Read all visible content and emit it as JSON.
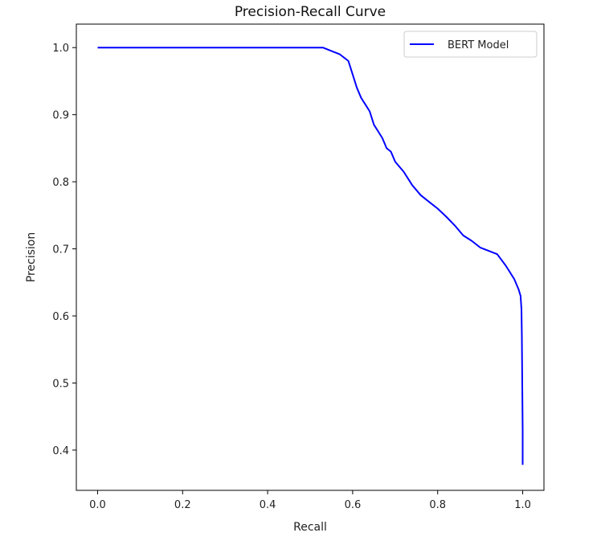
{
  "chart_data": {
    "type": "line",
    "title": "Precision-Recall Curve",
    "xlabel": "Recall",
    "ylabel": "Precision",
    "xlim": [
      -0.05,
      1.05
    ],
    "ylim": [
      0.34,
      1.035
    ],
    "xticks": [
      "0.0",
      "0.2",
      "0.4",
      "0.6",
      "0.8",
      "1.0"
    ],
    "yticks": [
      "0.4",
      "0.5",
      "0.6",
      "0.7",
      "0.8",
      "0.9",
      "1.0"
    ],
    "grid": false,
    "legend": "top-right",
    "series": [
      {
        "name": "BERT Model",
        "color": "#0000ff",
        "x": [
          0.0,
          0.1,
          0.2,
          0.3,
          0.4,
          0.5,
          0.53,
          0.55,
          0.57,
          0.59,
          0.6,
          0.61,
          0.62,
          0.63,
          0.64,
          0.65,
          0.66,
          0.67,
          0.68,
          0.69,
          0.7,
          0.72,
          0.74,
          0.76,
          0.78,
          0.8,
          0.82,
          0.84,
          0.86,
          0.88,
          0.9,
          0.92,
          0.94,
          0.96,
          0.98,
          0.99,
          0.995,
          0.997,
          0.998,
          0.999,
          1.0,
          1.0
        ],
        "y": [
          1.0,
          1.0,
          1.0,
          1.0,
          1.0,
          1.0,
          1.0,
          0.995,
          0.99,
          0.98,
          0.96,
          0.94,
          0.925,
          0.915,
          0.905,
          0.885,
          0.875,
          0.865,
          0.85,
          0.845,
          0.83,
          0.815,
          0.795,
          0.78,
          0.77,
          0.76,
          0.748,
          0.735,
          0.72,
          0.712,
          0.702,
          0.697,
          0.692,
          0.675,
          0.655,
          0.64,
          0.63,
          0.61,
          0.57,
          0.5,
          0.43,
          0.378
        ]
      }
    ]
  }
}
